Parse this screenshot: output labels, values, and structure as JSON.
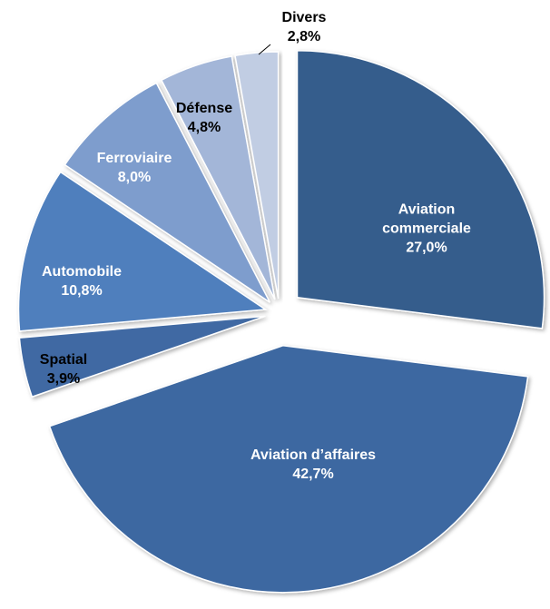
{
  "chart_data": {
    "type": "pie",
    "categories": [
      "Aviation commerciale",
      "Aviation d’affaires",
      "Spatial",
      "Automobile",
      "Ferroviaire",
      "Défense",
      "Divers"
    ],
    "values": [
      27.0,
      42.7,
      3.9,
      10.8,
      8.0,
      4.8,
      2.8
    ],
    "value_labels": [
      "27,0%",
      "42,7%",
      "3,9%",
      "10,8%",
      "8,0%",
      "4,8%",
      "2,8%"
    ],
    "colors": [
      "#365d8c",
      "#3e68a1",
      "#3f69a3",
      "#4f7fbd",
      "#7e9dcd",
      "#a3b6d8",
      "#c1cde3"
    ]
  }
}
